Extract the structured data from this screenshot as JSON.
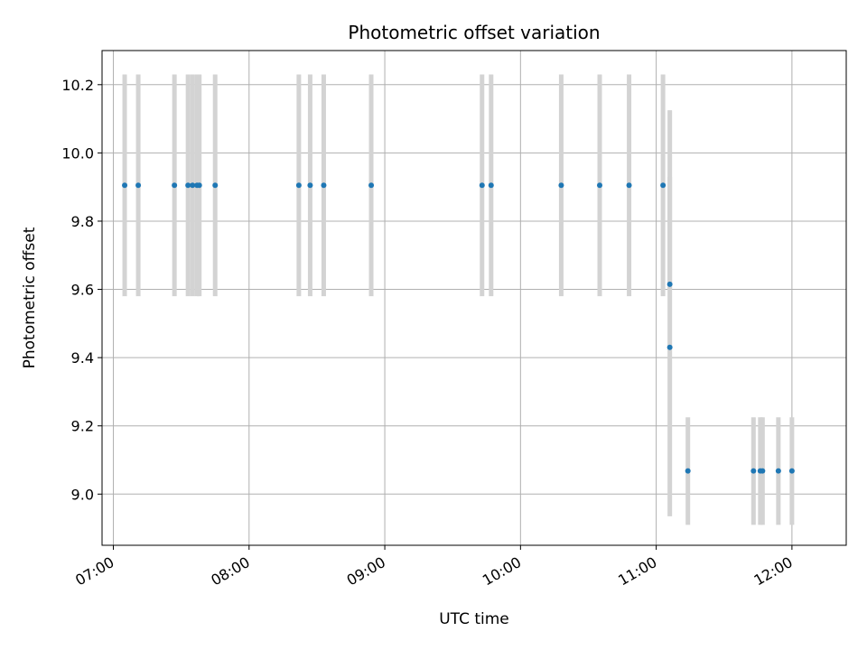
{
  "chart_data": {
    "type": "scatter",
    "title": "Photometric offset variation",
    "xlabel": "UTC time",
    "ylabel": "Photometric offset",
    "grid": true,
    "xlim": [
      "06:55",
      "12:24"
    ],
    "ylim": [
      8.85,
      10.3
    ],
    "x_ticks": [
      "07:00",
      "08:00",
      "09:00",
      "10:00",
      "11:00",
      "12:00"
    ],
    "y_ticks": [
      "9.0",
      "9.2",
      "9.4",
      "9.6",
      "9.8",
      "10.0",
      "10.2"
    ],
    "colors": {
      "marker": "#1f77b4",
      "errorbar": "#d3d3d3",
      "grid": "#b0b0b0"
    },
    "points": [
      {
        "x": "07:05",
        "y": 9.905,
        "ylow": 9.58,
        "yhigh": 10.23
      },
      {
        "x": "07:11",
        "y": 9.905,
        "ylow": 9.58,
        "yhigh": 10.23
      },
      {
        "x": "07:27",
        "y": 9.905,
        "ylow": 9.58,
        "yhigh": 10.23
      },
      {
        "x": "07:33",
        "y": 9.905,
        "ylow": 9.58,
        "yhigh": 10.23
      },
      {
        "x": "07:35",
        "y": 9.905,
        "ylow": 9.58,
        "yhigh": 10.23
      },
      {
        "x": "07:37",
        "y": 9.905,
        "ylow": 9.58,
        "yhigh": 10.23
      },
      {
        "x": "07:38",
        "y": 9.905,
        "ylow": 9.58,
        "yhigh": 10.23
      },
      {
        "x": "07:45",
        "y": 9.905,
        "ylow": 9.58,
        "yhigh": 10.23
      },
      {
        "x": "08:22",
        "y": 9.905,
        "ylow": 9.58,
        "yhigh": 10.23
      },
      {
        "x": "08:27",
        "y": 9.905,
        "ylow": 9.58,
        "yhigh": 10.23
      },
      {
        "x": "08:33",
        "y": 9.905,
        "ylow": 9.58,
        "yhigh": 10.23
      },
      {
        "x": "08:54",
        "y": 9.905,
        "ylow": 9.58,
        "yhigh": 10.23
      },
      {
        "x": "09:43",
        "y": 9.905,
        "ylow": 9.58,
        "yhigh": 10.23
      },
      {
        "x": "09:47",
        "y": 9.905,
        "ylow": 9.58,
        "yhigh": 10.23
      },
      {
        "x": "10:18",
        "y": 9.905,
        "ylow": 9.58,
        "yhigh": 10.23
      },
      {
        "x": "10:35",
        "y": 9.905,
        "ylow": 9.58,
        "yhigh": 10.23
      },
      {
        "x": "10:48",
        "y": 9.905,
        "ylow": 9.58,
        "yhigh": 10.23
      },
      {
        "x": "11:03",
        "y": 9.905,
        "ylow": 9.58,
        "yhigh": 10.23
      },
      {
        "x": "11:06",
        "y": 9.615,
        "ylow": 9.6,
        "yhigh": 10.125
      },
      {
        "x": "11:06",
        "y": 9.43,
        "ylow": 8.935,
        "yhigh": 9.93
      },
      {
        "x": "11:14",
        "y": 9.068,
        "ylow": 8.91,
        "yhigh": 9.225
      },
      {
        "x": "11:43",
        "y": 9.068,
        "ylow": 8.91,
        "yhigh": 9.225
      },
      {
        "x": "11:46",
        "y": 9.068,
        "ylow": 8.91,
        "yhigh": 9.225
      },
      {
        "x": "11:47",
        "y": 9.068,
        "ylow": 8.91,
        "yhigh": 9.225
      },
      {
        "x": "11:54",
        "y": 9.068,
        "ylow": 8.91,
        "yhigh": 9.225
      },
      {
        "x": "12:00",
        "y": 9.068,
        "ylow": 8.91,
        "yhigh": 9.225
      }
    ]
  }
}
